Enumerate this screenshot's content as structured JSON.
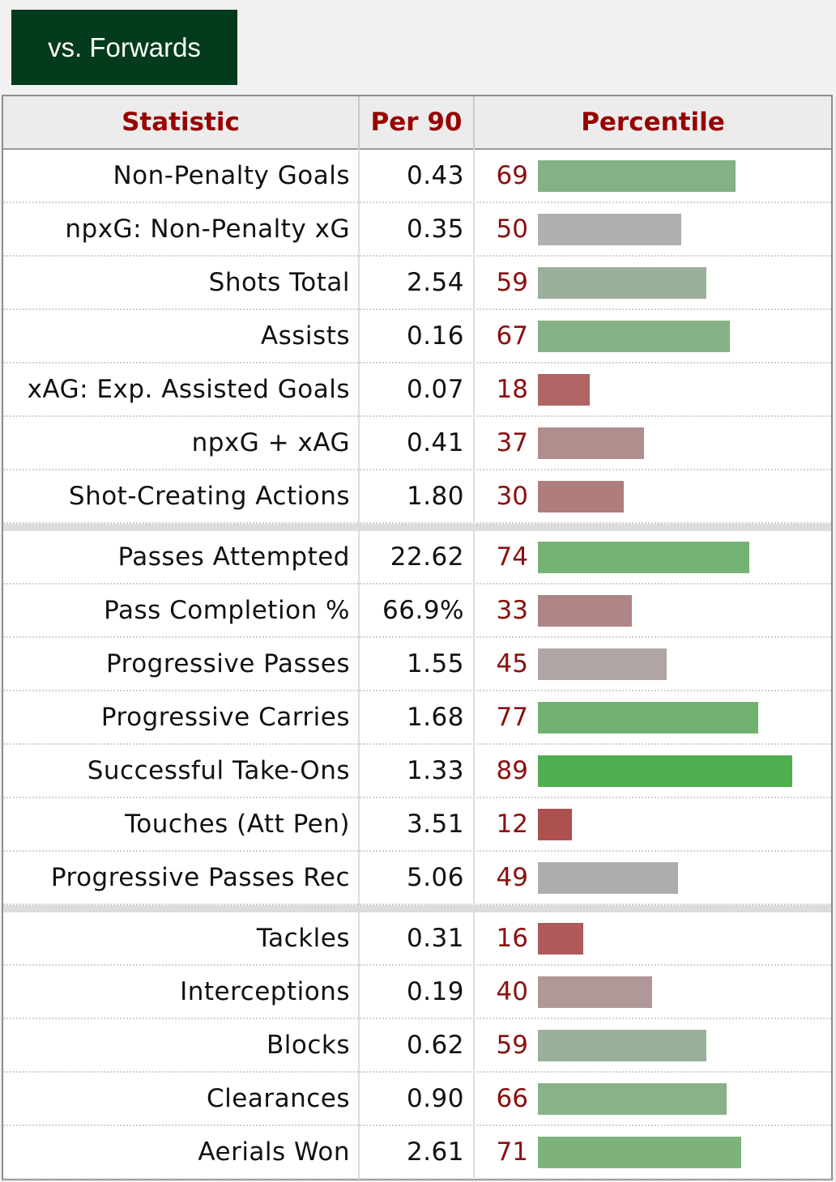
{
  "tab": {
    "label": "vs. Forwards"
  },
  "chart_data": {
    "type": "table",
    "columns": [
      "Statistic",
      "Per 90",
      "Percentile"
    ],
    "groups": [
      [
        {
          "stat": "Non-Penalty Goals",
          "per90": "0.43",
          "percentile": 69,
          "color": "#84b284"
        },
        {
          "stat": "npxG: Non-Penalty xG",
          "per90": "0.35",
          "percentile": 50,
          "color": "#b0b0b0"
        },
        {
          "stat": "Shots Total",
          "per90": "2.54",
          "percentile": 59,
          "color": "#9ab09a"
        },
        {
          "stat": "Assists",
          "per90": "0.16",
          "percentile": 67,
          "color": "#87b287"
        },
        {
          "stat": "xAG: Exp. Assisted Goals",
          "per90": "0.07",
          "percentile": 18,
          "color": "#b06464"
        },
        {
          "stat": "npxG + xAG",
          "per90": "0.41",
          "percentile": 37,
          "color": "#b08e8e"
        },
        {
          "stat": "Shot-Creating Actions",
          "per90": "1.80",
          "percentile": 30,
          "color": "#b07d7d"
        }
      ],
      [
        {
          "stat": "Passes Attempted",
          "per90": "22.62",
          "percentile": 74,
          "color": "#74b274"
        },
        {
          "stat": "Pass Completion %",
          "per90": "66.9%",
          "percentile": 33,
          "color": "#b08585"
        },
        {
          "stat": "Progressive Passes",
          "per90": "1.55",
          "percentile": 45,
          "color": "#b0a5a5"
        },
        {
          "stat": "Progressive Carries",
          "per90": "1.68",
          "percentile": 77,
          "color": "#71b271"
        },
        {
          "stat": "Successful Take-Ons",
          "per90": "1.33",
          "percentile": 89,
          "color": "#4fae50"
        },
        {
          "stat": "Touches (Att Pen)",
          "per90": "3.51",
          "percentile": 12,
          "color": "#ad5050"
        },
        {
          "stat": "Progressive Passes Rec",
          "per90": "5.06",
          "percentile": 49,
          "color": "#adadad"
        }
      ],
      [
        {
          "stat": "Tackles",
          "per90": "0.31",
          "percentile": 16,
          "color": "#ae5a5a"
        },
        {
          "stat": "Interceptions",
          "per90": "0.19",
          "percentile": 40,
          "color": "#b09898"
        },
        {
          "stat": "Blocks",
          "per90": "0.62",
          "percentile": 59,
          "color": "#9ab09a"
        },
        {
          "stat": "Clearances",
          "per90": "0.90",
          "percentile": 66,
          "color": "#89b289"
        },
        {
          "stat": "Aerials Won",
          "per90": "2.61",
          "percentile": 71,
          "color": "#7db27d"
        }
      ]
    ]
  }
}
